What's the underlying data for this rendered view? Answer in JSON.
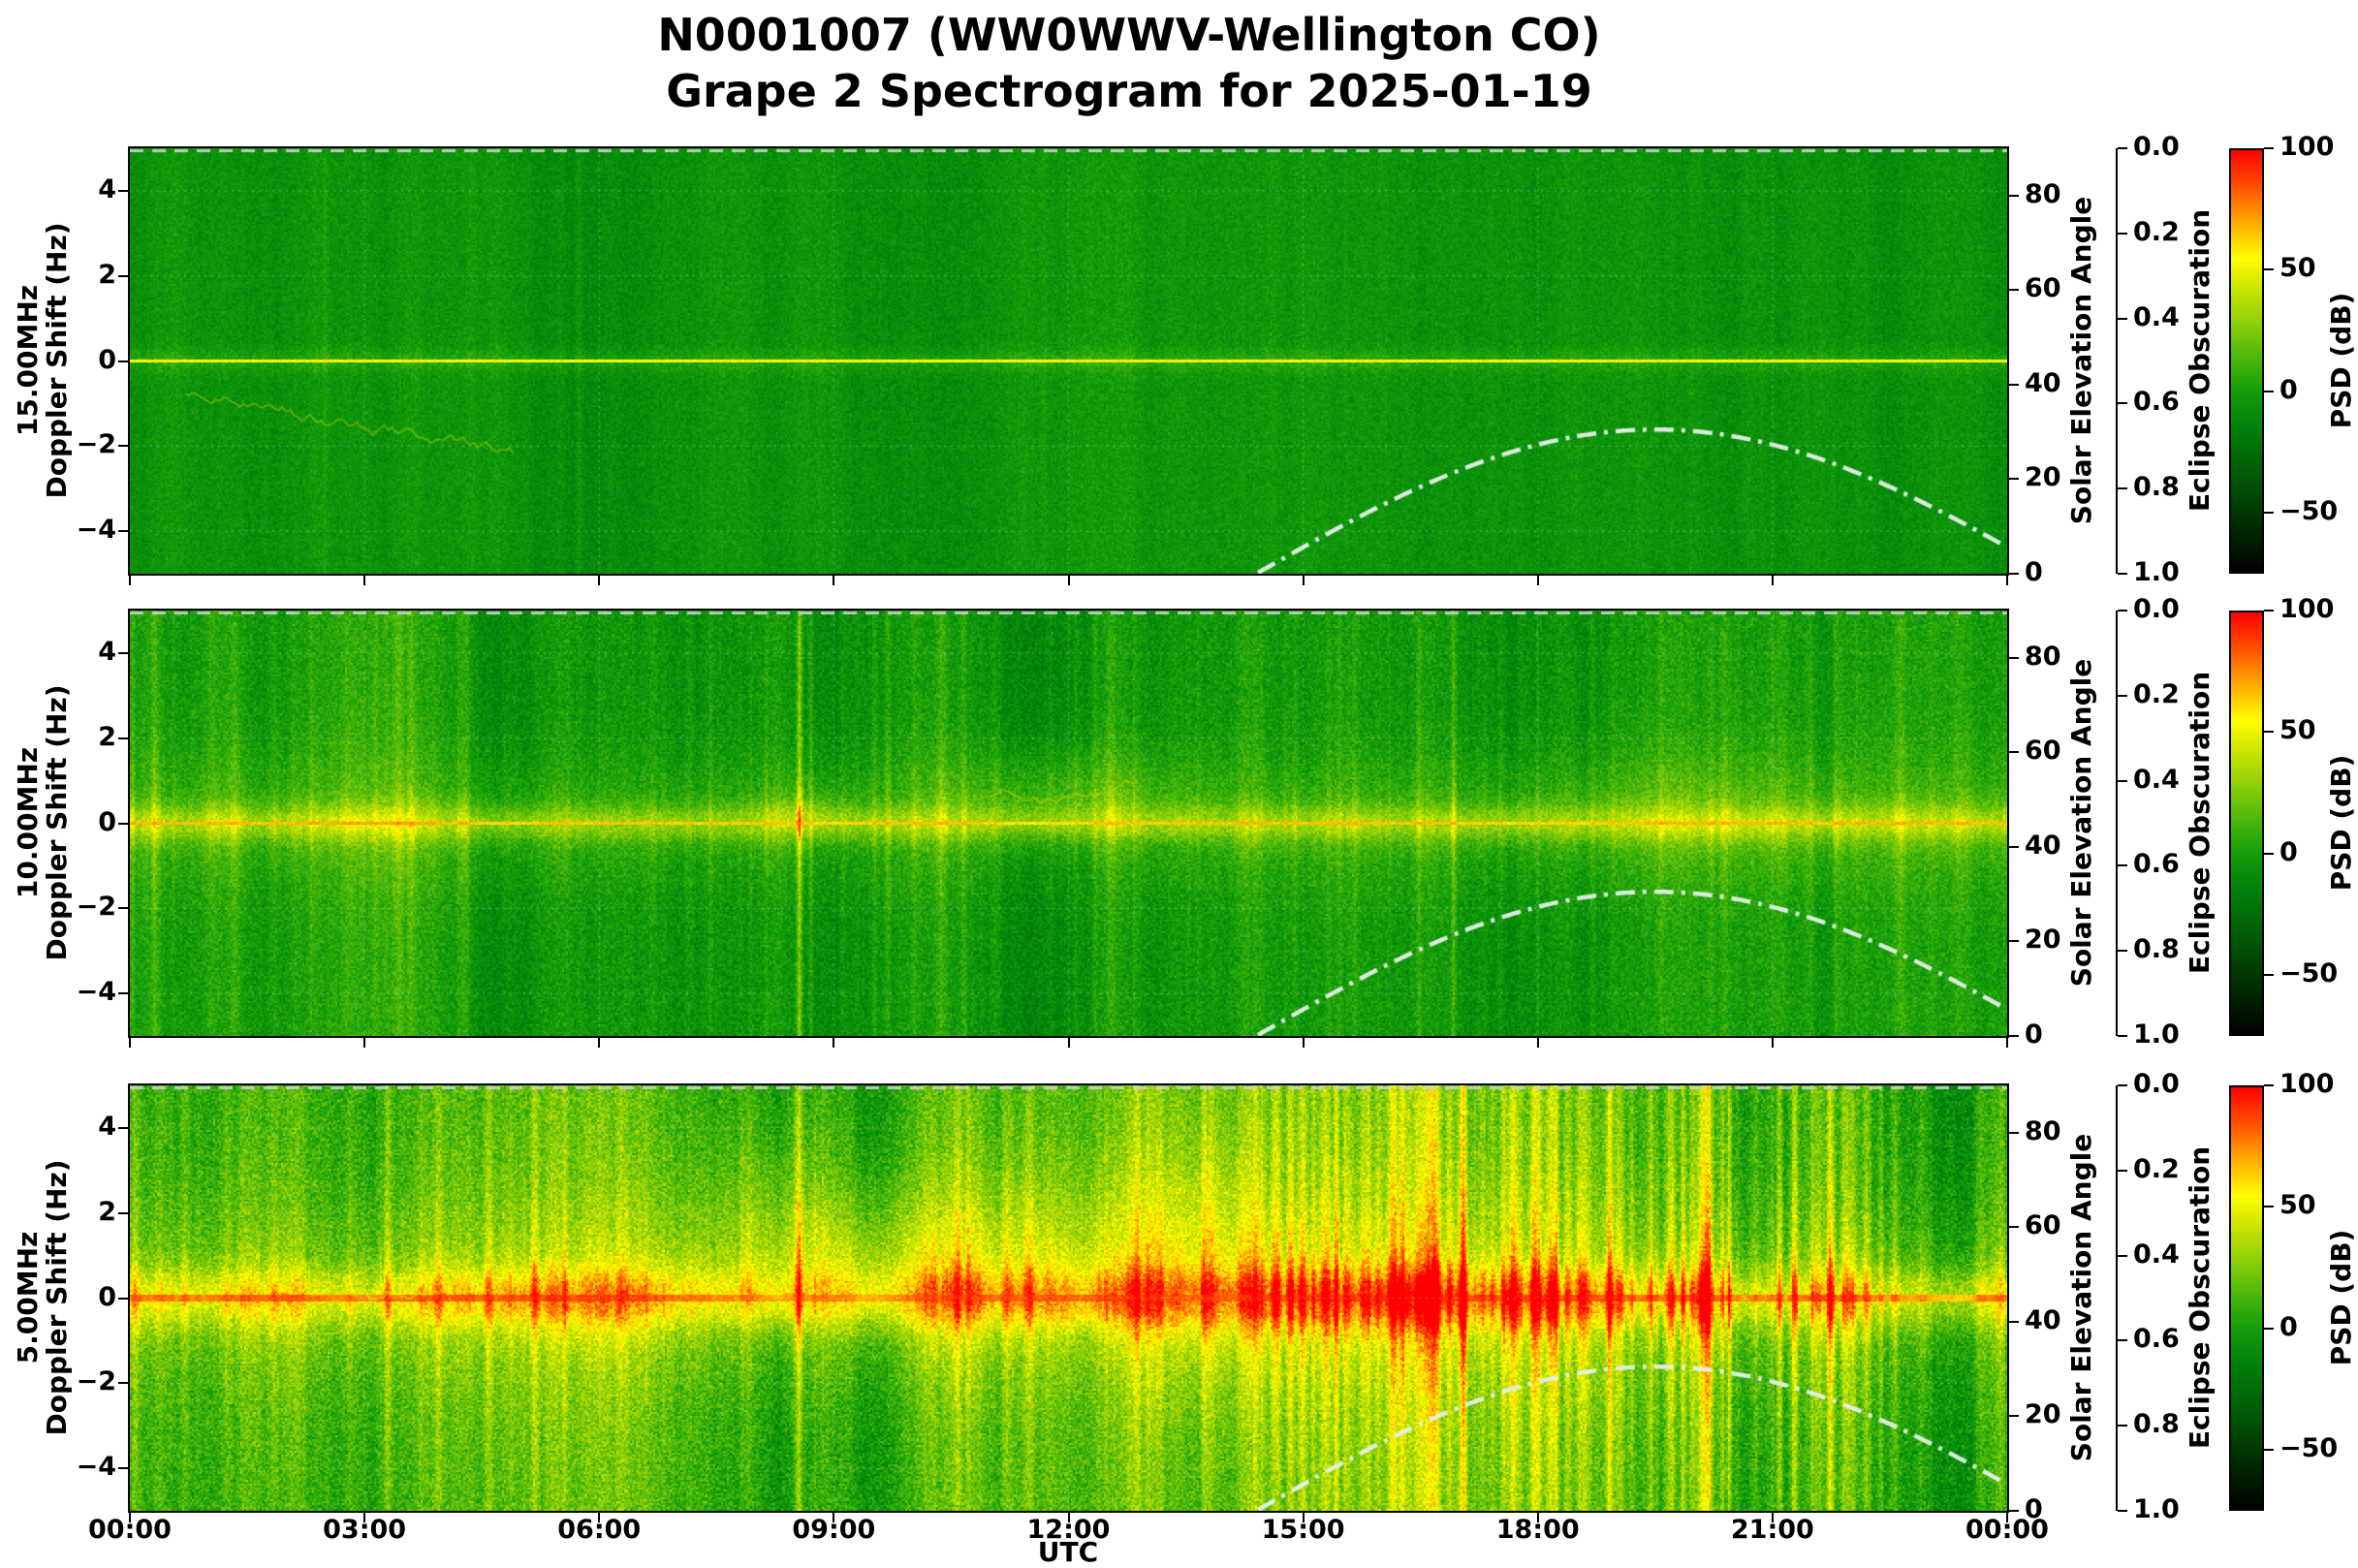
{
  "title": {
    "line1": "N0001007 (WW0WWV-Wellington CO)",
    "line2": "Grape 2 Spectrogram for 2025-01-19"
  },
  "chart_data": {
    "type": "heatmap",
    "subtype": "doppler-shift-spectrogram",
    "station": "N0001007",
    "site": "WW0WWV-Wellington CO",
    "date": "2025-01-19",
    "axes": {
      "x": {
        "label": "UTC",
        "lim_hours": [
          0,
          24
        ],
        "ticks": [
          {
            "v": 0,
            "label": "00:00"
          },
          {
            "v": 3,
            "label": "03:00"
          },
          {
            "v": 6,
            "label": "06:00"
          },
          {
            "v": 9,
            "label": "09:00"
          },
          {
            "v": 12,
            "label": "12:00"
          },
          {
            "v": 15,
            "label": "15:00"
          },
          {
            "v": 18,
            "label": "18:00"
          },
          {
            "v": 21,
            "label": "21:00"
          },
          {
            "v": 24,
            "label": "00:00"
          }
        ]
      },
      "y": {
        "label": "Doppler Shift (Hz)",
        "lim": [
          -5,
          5
        ],
        "ticks": [
          {
            "v": 4,
            "label": "4"
          },
          {
            "v": 2,
            "label": "2"
          },
          {
            "v": 0,
            "label": "0"
          },
          {
            "v": -2,
            "label": "−2"
          },
          {
            "v": -4,
            "label": "−4"
          }
        ],
        "grid": true
      },
      "solar": {
        "label": "Solar Elevation Angle",
        "lim": [
          0,
          90
        ],
        "ticks": [
          {
            "v": 80,
            "label": "80"
          },
          {
            "v": 60,
            "label": "60"
          },
          {
            "v": 40,
            "label": "40"
          },
          {
            "v": 20,
            "label": "20"
          },
          {
            "v": 0,
            "label": "0"
          }
        ]
      },
      "eclipse": {
        "label": "Eclipse Obscuration",
        "lim": [
          0,
          1
        ],
        "inverted": true,
        "ticks": [
          {
            "v": 0,
            "label": "0.0"
          },
          {
            "v": 0.2,
            "label": "0.2"
          },
          {
            "v": 0.4,
            "label": "0.4"
          },
          {
            "v": 0.6,
            "label": "0.6"
          },
          {
            "v": 0.8,
            "label": "0.8"
          },
          {
            "v": 1,
            "label": "1.0"
          }
        ]
      },
      "colorbar": {
        "label": "PSD (dB)",
        "lim": [
          -75,
          100
        ],
        "ticks": [
          {
            "v": 100,
            "label": "100"
          },
          {
            "v": 50,
            "label": "50"
          },
          {
            "v": 0,
            "label": "0"
          },
          {
            "v": -50,
            "label": "−50"
          }
        ],
        "cmap_stops": [
          [
            -75,
            "#000000"
          ],
          [
            -55,
            "#002d00"
          ],
          [
            -35,
            "#005a08"
          ],
          [
            -15,
            "#00800a"
          ],
          [
            0,
            "#149e0a"
          ],
          [
            15,
            "#50b90a"
          ],
          [
            30,
            "#96d208"
          ],
          [
            45,
            "#d7e800"
          ],
          [
            55,
            "#ffff00"
          ],
          [
            70,
            "#ffaa00"
          ],
          [
            85,
            "#ff5000"
          ],
          [
            100,
            "#ff0000"
          ]
        ]
      }
    },
    "solar_elevation": {
      "rise_utc": 14.4,
      "set_utc": 24.6,
      "peak_utc": 19.5,
      "peak_deg": 30.5,
      "style": "white dash-dot curve overlaid on each panel"
    },
    "eclipse_obscuration": {
      "constant": 0.0,
      "style": "gray dashed flat line along top of each panel (obscuration 0.0)"
    },
    "panels": [
      {
        "freq_label": "15.00MHz",
        "axis_label": "Doppler Shift  (Hz)",
        "carrier_hz": 0,
        "render": {
          "base_db": -8,
          "noise_db": 5,
          "col_walk": 0.5,
          "halo_amp": 9,
          "halo_sig": 0.2,
          "line_db": 56,
          "line_half": 0.055,
          "line_couple": 0.3,
          "streak_sets": [
            {
              "n": 10,
              "t0": 0,
              "t1": 24,
              "amp": 3
            }
          ],
          "blobs": [],
          "traces": [
            {
              "t0": 0.7,
              "t1": 4.9,
              "hz": -0.7,
              "drift": -1.3,
              "wander": 0.22,
              "w": 1.1,
              "color": "#9cc400",
              "alpha": 0.5
            }
          ]
        }
      },
      {
        "freq_label": "10.00MHz",
        "axis_label": "Doppler Shift (Hz)",
        "carrier_hz": 0,
        "render": {
          "base_db": -2,
          "noise_db": 7,
          "col_walk": 0.9,
          "halo_amp": 24,
          "halo_sig": 0.3,
          "halo2_amp": 11,
          "halo2_sig": 1.1,
          "line_db": 66,
          "line_half": 0.06,
          "line_couple": 0.6,
          "streak_sets": [
            {
              "n": 90,
              "t0": 0,
              "t1": 24,
              "amp": 6
            },
            {
              "n": 3,
              "t0": 8.5,
              "t1": 8.7,
              "amp": 14
            },
            {
              "n": 1,
              "t0": 0.03,
              "t1": 0.06,
              "amp": 20
            }
          ],
          "blobs": [
            {
              "t": 11.9,
              "hz": 0.8,
              "st": 1.1,
              "shz": 0.7,
              "amp": 11
            },
            {
              "t": 8.6,
              "hz": 0.3,
              "st": 0.4,
              "shz": 0.5,
              "amp": 12
            },
            {
              "t": 19.5,
              "hz": 0.4,
              "st": 1.6,
              "shz": 1.0,
              "amp": 7
            }
          ],
          "traces": [
            {
              "t0": 10.9,
              "t1": 12.9,
              "hz": 0.6,
              "drift": 0.15,
              "wander": 0.18,
              "w": 1.0,
              "color": "#c8dc00",
              "alpha": 0.45
            }
          ]
        }
      },
      {
        "freq_label": "5.00MHz",
        "axis_label": "Doppler Shift (Hz)",
        "carrier_hz": 0,
        "render": {
          "base_db": 7,
          "noise_db": 10,
          "col_walk": 1.3,
          "halo_amp": 28,
          "halo_sig": 0.5,
          "halo2_amp": 14,
          "halo2_sig": 1.7,
          "line_db": 78,
          "line_half": 0.07,
          "line_couple": 0.8,
          "streak_sets": [
            {
              "n": 150,
              "t0": 0,
              "t1": 24,
              "amp": 7
            },
            {
              "n": 130,
              "t0": 14.2,
              "t1": 22.6,
              "amp": 13
            },
            {
              "n": 3,
              "t0": 8.45,
              "t1": 8.65,
              "amp": 16
            },
            {
              "n": 1,
              "t0": 0.03,
              "t1": 0.06,
              "amp": 20
            },
            {
              "n": 1,
              "t0": 23.9,
              "t1": 23.95,
              "amp": 16
            }
          ],
          "dark_bands": [
            {
              "t0": 22.35,
              "t1": 23.45,
              "amp": -13
            }
          ],
          "blobs": [
            {
              "t": 11.0,
              "hz": 1.2,
              "st": 2.6,
              "shz": 1.4,
              "amp": 13
            },
            {
              "t": 9.0,
              "hz": 0.8,
              "st": 1.2,
              "shz": 1.0,
              "amp": 10
            },
            {
              "t": 13.7,
              "hz": 1.5,
              "st": 0.6,
              "shz": 2.6,
              "amp": 16
            },
            {
              "t": 8.3,
              "hz": 2.4,
              "st": 0.5,
              "shz": 1.8,
              "amp": 11
            }
          ],
          "traces": [
            {
              "t0": 1.2,
              "t1": 3.8,
              "hz": 0.3,
              "drift": 0,
              "wander": 0.2,
              "w": 1.2,
              "color": "#d8e600",
              "alpha": 0.5
            },
            {
              "t0": 23.3,
              "t1": 24.0,
              "hz": 0.1,
              "drift": 0,
              "wander": 0.35,
              "w": 1.4,
              "color": "#e6e600",
              "alpha": 0.6
            }
          ]
        }
      }
    ]
  }
}
